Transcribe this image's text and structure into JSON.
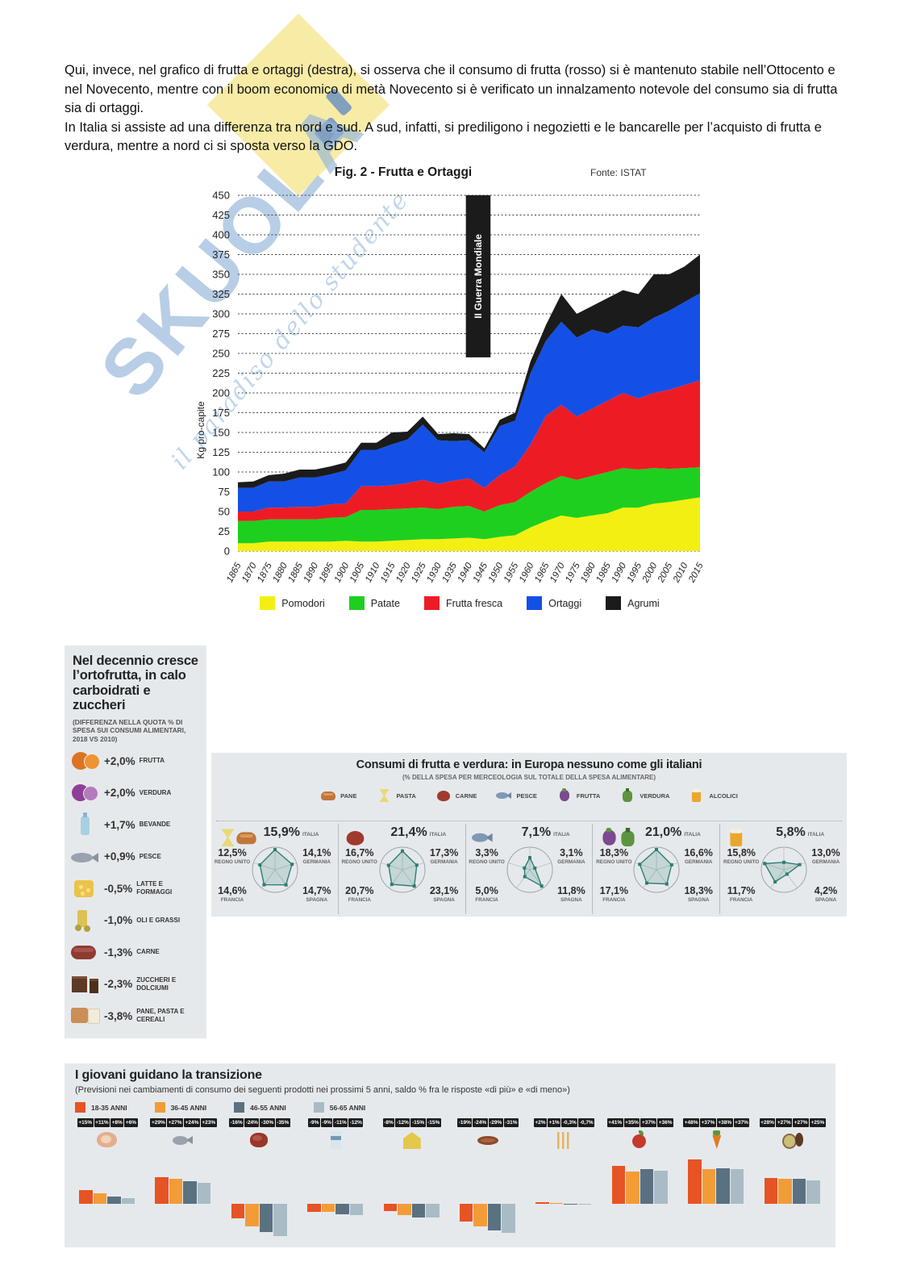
{
  "watermark": {
    "brand": "SKUOLA",
    "tagline": "il paradiso dello studente"
  },
  "intro": {
    "p1": "Qui, invece, nel grafico di frutta e ortaggi (destra), si osserva che il consumo di frutta (rosso) si è mantenuto stabile nell’Ottocento e nel Novecento, mentre con il boom economico di metà Novecento si è verificato un innalzamento notevole del consumo sia di frutta sia di ortaggi.",
    "p2": "In Italia si assiste ad una differenza tra nord e sud. A sud, infatti, si prediligono i negozietti e le bancarelle per l’acquisto di frutta e verdura, mentre a nord ci si sposta verso la GDO."
  },
  "chart": {
    "title": "Fig. 2 - Frutta e Ortaggi",
    "source": "Fonte: ISTAT",
    "y_axis_label": "Kg pro-capite"
  },
  "chart_data": {
    "type": "area",
    "stacked": true,
    "title": "Fig. 2 - Frutta e Ortaggi",
    "ylabel": "Kg pro-capite",
    "ylim": [
      0,
      450
    ],
    "ytick_step": 25,
    "grid": "dashed horizontal",
    "legend_position": "bottom",
    "x": [
      1865,
      1870,
      1875,
      1880,
      1885,
      1890,
      1895,
      1900,
      1905,
      1910,
      1915,
      1920,
      1925,
      1930,
      1935,
      1940,
      1945,
      1950,
      1955,
      1960,
      1965,
      1970,
      1975,
      1980,
      1985,
      1990,
      1995,
      2000,
      2005,
      2010,
      2015
    ],
    "series": [
      {
        "name": "Pomodori",
        "color": "#f3ef12",
        "values": [
          10,
          10,
          12,
          12,
          12,
          12,
          12,
          13,
          12,
          12,
          13,
          14,
          15,
          15,
          16,
          17,
          15,
          18,
          20,
          30,
          38,
          45,
          42,
          45,
          48,
          55,
          55,
          60,
          62,
          65,
          68
        ]
      },
      {
        "name": "Patate",
        "color": "#1fcf1f",
        "values": [
          28,
          28,
          28,
          28,
          28,
          28,
          30,
          30,
          40,
          40,
          40,
          40,
          40,
          38,
          40,
          40,
          35,
          40,
          42,
          45,
          48,
          50,
          48,
          50,
          52,
          50,
          48,
          45,
          42,
          40,
          38
        ]
      },
      {
        "name": "Frutta fresca",
        "color": "#ed1c24",
        "values": [
          12,
          12,
          15,
          15,
          16,
          16,
          17,
          17,
          30,
          30,
          30,
          32,
          35,
          32,
          33,
          35,
          30,
          38,
          45,
          60,
          85,
          90,
          80,
          85,
          90,
          95,
          90,
          95,
          100,
          105,
          110
        ]
      },
      {
        "name": "Ortaggi",
        "color": "#1450e6",
        "values": [
          30,
          30,
          33,
          33,
          37,
          37,
          38,
          42,
          46,
          46,
          52,
          55,
          70,
          55,
          50,
          48,
          45,
          62,
          58,
          90,
          95,
          105,
          100,
          100,
          85,
          85,
          90,
          95,
          100,
          105,
          110
        ]
      },
      {
        "name": "Agrumi",
        "color": "#1b1b1b",
        "values": [
          7,
          8,
          8,
          10,
          10,
          10,
          10,
          10,
          9,
          9,
          15,
          10,
          10,
          8,
          10,
          8,
          5,
          8,
          10,
          15,
          20,
          35,
          30,
          30,
          45,
          45,
          42,
          55,
          46,
          45,
          49
        ]
      }
    ],
    "annotation": {
      "label": "II Guerra Mondiale",
      "x_start": 1939,
      "x_end": 1947,
      "y_bottom": 245
    }
  },
  "sidebar": {
    "title": "Nel decennio cresce l’ortofrutta, in calo carboidrati e zuccheri",
    "subtitle": "(DIFFERENZA NELLA QUOTA % DI SPESA SUI CONSUMI ALIMENTARI, 2018 VS 2010)",
    "items": [
      {
        "value": "+2,0%",
        "label": "FRUTTA",
        "icon": "fruit"
      },
      {
        "value": "+2,0%",
        "label": "VERDURA",
        "icon": "vegetable"
      },
      {
        "value": "+1,7%",
        "label": "BEVANDE",
        "icon": "bottle"
      },
      {
        "value": "+0,9%",
        "label": "PESCE",
        "icon": "fish"
      },
      {
        "value": "-0,5%",
        "label": "LATTE E FORMAGGI",
        "icon": "cheese"
      },
      {
        "value": "-1,0%",
        "label": "OLI E GRASSI",
        "icon": "oil"
      },
      {
        "value": "-1,3%",
        "label": "CARNE",
        "icon": "meat"
      },
      {
        "value": "-2,3%",
        "label": "ZUCCHERI E DOLCIUMI",
        "icon": "choc"
      },
      {
        "value": "-3,8%",
        "label": "PANE, PASTA E CEREALI",
        "icon": "bread"
      }
    ]
  },
  "europe": {
    "title": "Consumi di frutta e verdura: in Europa nessuno come gli italiani",
    "subtitle": "(% DELLA SPESA PER MERCEOLOGIA SUL TOTALE DELLA SPESA ALIMENTARE)",
    "legend": [
      {
        "label": "PANE",
        "icon": "bread"
      },
      {
        "label": "PASTA",
        "icon": "pasta"
      },
      {
        "label": "CARNE",
        "icon": "meat"
      },
      {
        "label": "PESCE",
        "icon": "fish"
      },
      {
        "label": "FRUTTA",
        "icon": "grapes"
      },
      {
        "label": "VERDURA",
        "icon": "pepper"
      },
      {
        "label": "ALCOLICI",
        "icon": "beer"
      }
    ],
    "countries": {
      "italia": "ITALIA",
      "regno_unito": "REGNO UNITO",
      "germania": "GERMANIA",
      "francia": "FRANCIA",
      "spagna": "SPAGNA"
    },
    "radar_color": "#2e7d73",
    "panels": [
      {
        "icons": [
          "pasta",
          "bread"
        ],
        "italia": "15,9%",
        "regno_unito": "12,5%",
        "germania": "14,1%",
        "francia": "14,6%",
        "spagna": "14,7%"
      },
      {
        "icons": [
          "meat"
        ],
        "italia": "21,4%",
        "regno_unito": "16,7%",
        "germania": "17,3%",
        "francia": "20,7%",
        "spagna": "23,1%"
      },
      {
        "icons": [
          "fish"
        ],
        "italia": "7,1%",
        "regno_unito": "3,3%",
        "germania": "3,1%",
        "francia": "5,0%",
        "spagna": "11,8%"
      },
      {
        "icons": [
          "grapes",
          "pepper"
        ],
        "italia": "21,0%",
        "regno_unito": "18,3%",
        "germania": "16,6%",
        "francia": "17,1%",
        "spagna": "18,3%"
      },
      {
        "icons": [
          "beer"
        ],
        "italia": "5,8%",
        "regno_unito": "15,8%",
        "germania": "13,0%",
        "francia": "11,7%",
        "spagna": "4,2%"
      }
    ]
  },
  "transition": {
    "title": "I giovani guidano la transizione",
    "subtitle": "(Previsioni nei cambiamenti di consumo dei seguenti prodotti nei prossimi 5 anni, saldo % fra le risposte «di più» e «di meno»)",
    "age_groups": [
      {
        "label": "18-35 ANNI",
        "color": "#e65325"
      },
      {
        "label": "36-45 ANNI",
        "color": "#f29c38"
      },
      {
        "label": "46-55 ANNI",
        "color": "#5a7182"
      },
      {
        "label": "56-65 ANNI",
        "color": "#a9bcc6"
      }
    ],
    "groups": [
      {
        "product": "prosciutto",
        "values": [
          "+15%",
          "+11%",
          "+8%",
          "+6%"
        ]
      },
      {
        "product": "pesce",
        "values": [
          "+29%",
          "+27%",
          "+24%",
          "+23%"
        ]
      },
      {
        "product": "carne",
        "values": [
          "-16%",
          "-24%",
          "-30%",
          "-35%"
        ]
      },
      {
        "product": "latte",
        "values": [
          "-9%",
          "-9%",
          "-11%",
          "-12%"
        ]
      },
      {
        "product": "formaggi",
        "values": [
          "-8%",
          "-12%",
          "-15%",
          "-15%"
        ]
      },
      {
        "product": "salumi",
        "values": [
          "-19%",
          "-24%",
          "-29%",
          "-31%"
        ]
      },
      {
        "product": "pasta",
        "values": [
          "+2%",
          "+1%",
          "-0,3%",
          "-0,7%"
        ]
      },
      {
        "product": "frutta",
        "values": [
          "+41%",
          "+35%",
          "+37%",
          "+36%"
        ]
      },
      {
        "product": "verdura",
        "values": [
          "+48%",
          "+37%",
          "+38%",
          "+37%"
        ]
      },
      {
        "product": "frutta_secca",
        "values": [
          "+28%",
          "+27%",
          "+27%",
          "+25%"
        ]
      }
    ]
  }
}
